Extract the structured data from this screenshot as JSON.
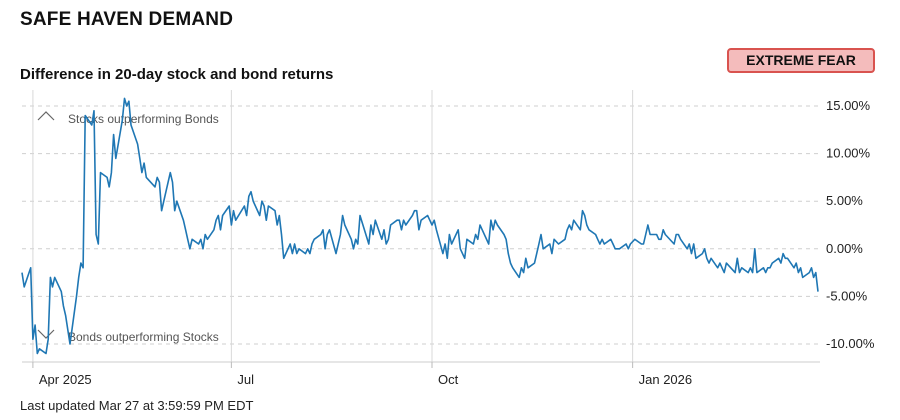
{
  "header": {
    "title": "SAFE HAVEN DEMAND"
  },
  "badge": {
    "label": "EXTREME FEAR",
    "color": "#f4bcbc",
    "border_color": "#d9534f"
  },
  "footer": {
    "last_updated": "Last updated Mar 27 at 3:59:59 PM EDT"
  },
  "chart_data": {
    "type": "line",
    "title": "Difference in 20-day stock and bond returns",
    "xlabel": "",
    "ylabel": "",
    "ylim": [
      -11,
      16
    ],
    "x_range": [
      "2025-03-27",
      "2026-03-27"
    ],
    "grid": true,
    "line_color": "#1f77b4",
    "y_ticks": [
      {
        "value": 15,
        "label": "15.00%"
      },
      {
        "value": 10,
        "label": "10.00%"
      },
      {
        "value": 5,
        "label": "5.00%"
      },
      {
        "value": 0,
        "label": "0.00%"
      },
      {
        "value": -5,
        "label": "-5.00%"
      },
      {
        "value": -10,
        "label": "-10.00%"
      }
    ],
    "x_ticks": [
      {
        "date": "2025-04-01",
        "label": "Apr 2025"
      },
      {
        "date": "2025-07-01",
        "label": "Jul"
      },
      {
        "date": "2025-10-01",
        "label": "Oct"
      },
      {
        "date": "2026-01-01",
        "label": "Jan 2026"
      }
    ],
    "annotations": [
      {
        "text": "Stocks outperforming Bonds",
        "icon": "chevron-up-icon"
      },
      {
        "text": "Bonds outperforming Stocks",
        "icon": "chevron-down-icon"
      }
    ],
    "series": [
      {
        "values": [
          [
            "2025-03-27",
            -2.5
          ],
          [
            "2025-03-28",
            -4.0
          ],
          [
            "2025-03-31",
            -2.0
          ],
          [
            "2025-04-01",
            -9.5
          ],
          [
            "2025-04-02",
            -8.0
          ],
          [
            "2025-04-03",
            -11.0
          ],
          [
            "2025-04-04",
            -10.5
          ],
          [
            "2025-04-07",
            -11.0
          ],
          [
            "2025-04-08",
            -9.5
          ],
          [
            "2025-04-09",
            -3.0
          ],
          [
            "2025-04-10",
            -4.0
          ],
          [
            "2025-04-11",
            -3.0
          ],
          [
            "2025-04-14",
            -4.5
          ],
          [
            "2025-04-15",
            -6.0
          ],
          [
            "2025-04-16",
            -7.0
          ],
          [
            "2025-04-17",
            -8.5
          ],
          [
            "2025-04-18",
            -10.0
          ],
          [
            "2025-04-21",
            -5.0
          ],
          [
            "2025-04-22",
            -3.0
          ],
          [
            "2025-04-23",
            -1.5
          ],
          [
            "2025-04-24",
            -2.0
          ],
          [
            "2025-04-25",
            14.0
          ],
          [
            "2025-04-28",
            13.0
          ],
          [
            "2025-04-29",
            14.5
          ],
          [
            "2025-04-30",
            1.5
          ],
          [
            "2025-05-01",
            0.5
          ],
          [
            "2025-05-02",
            8.0
          ],
          [
            "2025-05-05",
            7.5
          ],
          [
            "2025-05-06",
            6.5
          ],
          [
            "2025-05-07",
            8.0
          ],
          [
            "2025-05-08",
            12.0
          ],
          [
            "2025-05-09",
            9.5
          ],
          [
            "2025-05-12",
            13.5
          ],
          [
            "2025-05-13",
            15.8
          ],
          [
            "2025-05-14",
            15.0
          ],
          [
            "2025-05-15",
            15.5
          ],
          [
            "2025-05-16",
            13.0
          ],
          [
            "2025-05-19",
            11.0
          ],
          [
            "2025-05-20",
            9.5
          ],
          [
            "2025-05-21",
            8.0
          ],
          [
            "2025-05-22",
            9.0
          ],
          [
            "2025-05-23",
            7.5
          ],
          [
            "2025-05-27",
            6.5
          ],
          [
            "2025-05-28",
            7.5
          ],
          [
            "2025-05-29",
            7.0
          ],
          [
            "2025-05-30",
            4.0
          ],
          [
            "2025-06-02",
            7.0
          ],
          [
            "2025-06-03",
            8.0
          ],
          [
            "2025-06-04",
            7.0
          ],
          [
            "2025-06-05",
            4.0
          ],
          [
            "2025-06-06",
            5.0
          ],
          [
            "2025-06-09",
            3.0
          ],
          [
            "2025-06-10",
            2.0
          ],
          [
            "2025-06-11",
            1.0
          ],
          [
            "2025-06-12",
            0.0
          ],
          [
            "2025-06-13",
            1.0
          ],
          [
            "2025-06-16",
            0.5
          ],
          [
            "2025-06-17",
            1.0
          ],
          [
            "2025-06-18",
            0.0
          ],
          [
            "2025-06-19",
            1.5
          ],
          [
            "2025-06-20",
            1.0
          ],
          [
            "2025-06-23",
            2.0
          ],
          [
            "2025-06-24",
            3.0
          ],
          [
            "2025-06-25",
            3.5
          ],
          [
            "2025-06-26",
            2.0
          ],
          [
            "2025-06-27",
            3.5
          ],
          [
            "2025-06-30",
            4.5
          ],
          [
            "2025-07-01",
            2.5
          ],
          [
            "2025-07-02",
            4.0
          ],
          [
            "2025-07-03",
            3.0
          ],
          [
            "2025-07-07",
            4.5
          ],
          [
            "2025-07-08",
            3.5
          ],
          [
            "2025-07-09",
            5.5
          ],
          [
            "2025-07-10",
            6.0
          ],
          [
            "2025-07-11",
            5.0
          ],
          [
            "2025-07-14",
            3.5
          ],
          [
            "2025-07-15",
            5.0
          ],
          [
            "2025-07-16",
            4.5
          ],
          [
            "2025-07-17",
            3.0
          ],
          [
            "2025-07-18",
            4.5
          ],
          [
            "2025-07-21",
            4.0
          ],
          [
            "2025-07-22",
            2.5
          ],
          [
            "2025-07-23",
            3.5
          ],
          [
            "2025-07-24",
            1.5
          ],
          [
            "2025-07-25",
            -1.0
          ],
          [
            "2025-07-28",
            0.5
          ],
          [
            "2025-07-29",
            -0.5
          ],
          [
            "2025-07-30",
            0.5
          ],
          [
            "2025-07-31",
            -0.5
          ],
          [
            "2025-08-01",
            0.0
          ],
          [
            "2025-08-04",
            -0.5
          ],
          [
            "2025-08-05",
            0.0
          ],
          [
            "2025-08-06",
            -0.5
          ],
          [
            "2025-08-07",
            0.5
          ],
          [
            "2025-08-08",
            1.0
          ],
          [
            "2025-08-11",
            1.5
          ],
          [
            "2025-08-12",
            2.0
          ],
          [
            "2025-08-13",
            0.0
          ],
          [
            "2025-08-14",
            1.5
          ],
          [
            "2025-08-15",
            2.0
          ],
          [
            "2025-08-18",
            -0.5
          ],
          [
            "2025-08-19",
            0.5
          ],
          [
            "2025-08-20",
            1.5
          ],
          [
            "2025-08-21",
            3.5
          ],
          [
            "2025-08-22",
            2.5
          ],
          [
            "2025-08-25",
            1.0
          ],
          [
            "2025-08-26",
            0.0
          ],
          [
            "2025-08-27",
            1.0
          ],
          [
            "2025-08-28",
            0.5
          ],
          [
            "2025-08-29",
            3.5
          ],
          [
            "2025-09-02",
            0.5
          ],
          [
            "2025-09-03",
            2.5
          ],
          [
            "2025-09-04",
            1.5
          ],
          [
            "2025-09-05",
            3.0
          ],
          [
            "2025-09-08",
            1.0
          ],
          [
            "2025-09-09",
            2.0
          ],
          [
            "2025-09-10",
            0.5
          ],
          [
            "2025-09-11",
            1.0
          ],
          [
            "2025-09-12",
            2.5
          ],
          [
            "2025-09-15",
            3.0
          ],
          [
            "2025-09-16",
            3.0
          ],
          [
            "2025-09-17",
            2.0
          ],
          [
            "2025-09-18",
            3.0
          ],
          [
            "2025-09-19",
            2.5
          ],
          [
            "2025-09-22",
            3.5
          ],
          [
            "2025-09-23",
            4.0
          ],
          [
            "2025-09-24",
            4.0
          ],
          [
            "2025-09-25",
            2.0
          ],
          [
            "2025-09-26",
            3.0
          ],
          [
            "2025-09-29",
            3.5
          ],
          [
            "2025-09-30",
            3.0
          ],
          [
            "2025-10-01",
            2.5
          ],
          [
            "2025-10-02",
            3.0
          ],
          [
            "2025-10-03",
            2.0
          ],
          [
            "2025-10-06",
            -0.5
          ],
          [
            "2025-10-07",
            0.5
          ],
          [
            "2025-10-08",
            -1.0
          ],
          [
            "2025-10-09",
            1.5
          ],
          [
            "2025-10-10",
            0.5
          ],
          [
            "2025-10-13",
            2.0
          ],
          [
            "2025-10-14",
            0.0
          ],
          [
            "2025-10-15",
            -0.5
          ],
          [
            "2025-10-16",
            -1.0
          ],
          [
            "2025-10-17",
            1.0
          ],
          [
            "2025-10-20",
            0.5
          ],
          [
            "2025-10-21",
            1.5
          ],
          [
            "2025-10-22",
            1.0
          ],
          [
            "2025-10-23",
            2.5
          ],
          [
            "2025-10-24",
            2.0
          ],
          [
            "2025-10-27",
            0.5
          ],
          [
            "2025-10-28",
            3.0
          ],
          [
            "2025-10-29",
            2.0
          ],
          [
            "2025-10-30",
            3.0
          ],
          [
            "2025-10-31",
            2.5
          ],
          [
            "2025-11-03",
            1.5
          ],
          [
            "2025-11-04",
            1.0
          ],
          [
            "2025-11-05",
            -0.5
          ],
          [
            "2025-11-06",
            -1.5
          ],
          [
            "2025-11-07",
            -2.0
          ],
          [
            "2025-11-10",
            -3.0
          ],
          [
            "2025-11-11",
            -2.0
          ],
          [
            "2025-11-12",
            -2.5
          ],
          [
            "2025-11-13",
            -1.0
          ],
          [
            "2025-11-14",
            -2.0
          ],
          [
            "2025-11-17",
            -1.5
          ],
          [
            "2025-11-18",
            -0.5
          ],
          [
            "2025-11-19",
            0.5
          ],
          [
            "2025-11-20",
            1.5
          ],
          [
            "2025-11-21",
            0.0
          ],
          [
            "2025-11-24",
            0.5
          ],
          [
            "2025-11-25",
            -0.5
          ],
          [
            "2025-11-26",
            1.0
          ],
          [
            "2025-11-28",
            0.5
          ],
          [
            "2025-12-01",
            1.0
          ],
          [
            "2025-12-02",
            2.0
          ],
          [
            "2025-12-03",
            2.5
          ],
          [
            "2025-12-04",
            2.0
          ],
          [
            "2025-12-05",
            3.0
          ],
          [
            "2025-12-08",
            2.0
          ],
          [
            "2025-12-09",
            4.0
          ],
          [
            "2025-12-10",
            3.5
          ],
          [
            "2025-12-11",
            2.5
          ],
          [
            "2025-12-12",
            2.0
          ],
          [
            "2025-12-15",
            1.5
          ],
          [
            "2025-12-16",
            1.0
          ],
          [
            "2025-12-17",
            0.5
          ],
          [
            "2025-12-18",
            1.0
          ],
          [
            "2025-12-19",
            0.5
          ],
          [
            "2025-12-22",
            1.0
          ],
          [
            "2025-12-23",
            0.5
          ],
          [
            "2025-12-24",
            0.0
          ],
          [
            "2025-12-26",
            0.0
          ],
          [
            "2025-12-29",
            0.5
          ],
          [
            "2025-12-30",
            0.0
          ],
          [
            "2025-12-31",
            0.5
          ],
          [
            "2026-01-02",
            1.0
          ],
          [
            "2026-01-05",
            0.5
          ],
          [
            "2026-01-06",
            0.5
          ],
          [
            "2026-01-07",
            1.5
          ],
          [
            "2026-01-08",
            2.5
          ],
          [
            "2026-01-09",
            1.5
          ],
          [
            "2026-01-12",
            1.5
          ],
          [
            "2026-01-13",
            1.0
          ],
          [
            "2026-01-14",
            1.0
          ],
          [
            "2026-01-15",
            2.0
          ],
          [
            "2026-01-16",
            1.5
          ],
          [
            "2026-01-20",
            0.5
          ],
          [
            "2026-01-21",
            1.5
          ],
          [
            "2026-01-22",
            1.5
          ],
          [
            "2026-01-23",
            1.0
          ],
          [
            "2026-01-26",
            0.0
          ],
          [
            "2026-01-27",
            0.5
          ],
          [
            "2026-01-28",
            -0.5
          ],
          [
            "2026-01-29",
            0.5
          ],
          [
            "2026-01-30",
            -1.0
          ],
          [
            "2026-02-02",
            -0.5
          ],
          [
            "2026-02-03",
            0.0
          ],
          [
            "2026-02-04",
            -1.0
          ],
          [
            "2026-02-05",
            -1.5
          ],
          [
            "2026-02-06",
            -1.0
          ],
          [
            "2026-02-09",
            -2.0
          ],
          [
            "2026-02-10",
            -1.5
          ],
          [
            "2026-02-11",
            -2.0
          ],
          [
            "2026-02-12",
            -2.5
          ],
          [
            "2026-02-13",
            -1.5
          ],
          [
            "2026-02-17",
            -2.5
          ],
          [
            "2026-02-18",
            -1.0
          ],
          [
            "2026-02-19",
            -2.5
          ],
          [
            "2026-02-20",
            -2.0
          ],
          [
            "2026-02-23",
            -2.5
          ],
          [
            "2026-02-24",
            -2.0
          ],
          [
            "2026-02-25",
            -2.5
          ],
          [
            "2026-02-26",
            0.0
          ],
          [
            "2026-02-27",
            -2.5
          ],
          [
            "2026-03-02",
            -2.0
          ],
          [
            "2026-03-03",
            -2.5
          ],
          [
            "2026-03-04",
            -2.0
          ],
          [
            "2026-03-05",
            -2.0
          ],
          [
            "2026-03-06",
            -1.5
          ],
          [
            "2026-03-09",
            -1.0
          ],
          [
            "2026-03-10",
            -1.5
          ],
          [
            "2026-03-11",
            -0.5
          ],
          [
            "2026-03-12",
            -1.0
          ],
          [
            "2026-03-13",
            -1.0
          ],
          [
            "2026-03-16",
            -2.0
          ],
          [
            "2026-03-17",
            -1.5
          ],
          [
            "2026-03-18",
            -2.5
          ],
          [
            "2026-03-19",
            -2.0
          ],
          [
            "2026-03-20",
            -3.0
          ],
          [
            "2026-03-23",
            -2.5
          ],
          [
            "2026-03-24",
            -2.0
          ],
          [
            "2026-03-25",
            -3.0
          ],
          [
            "2026-03-26",
            -2.5
          ],
          [
            "2026-03-27",
            -4.5
          ]
        ]
      }
    ]
  }
}
